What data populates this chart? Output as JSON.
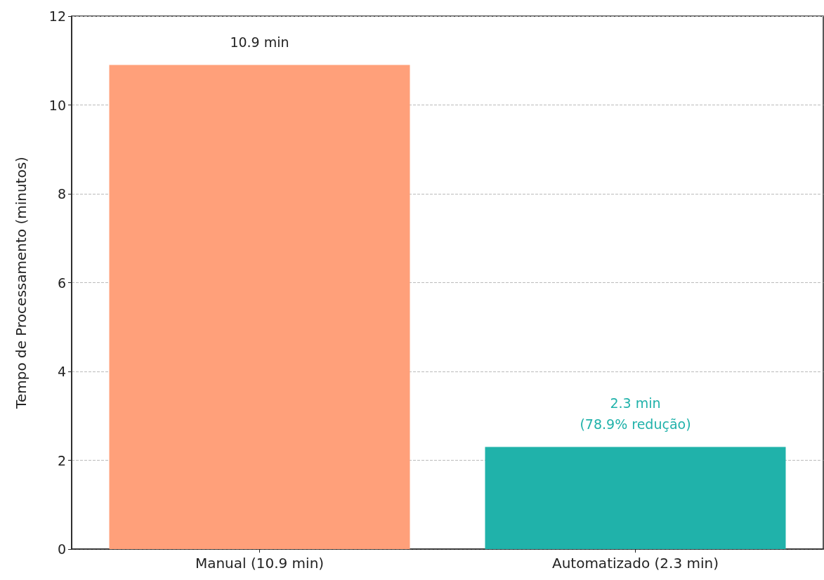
{
  "chart_data": {
    "type": "bar",
    "ylabel": "Tempo de Processamento (minutos)",
    "categories": [
      "Manual (10.9 min)",
      "Automatizado (2.3 min)"
    ],
    "values": [
      10.9,
      2.3
    ],
    "colors": [
      "#ffa07a",
      "#20b2aa"
    ],
    "value_labels": [
      "10.9 min",
      "2.3 min\n(78.9% redução)"
    ],
    "ylim": [
      0,
      12
    ],
    "yticks": [
      0,
      2,
      4,
      6,
      8,
      10,
      12
    ],
    "grid": "y"
  }
}
